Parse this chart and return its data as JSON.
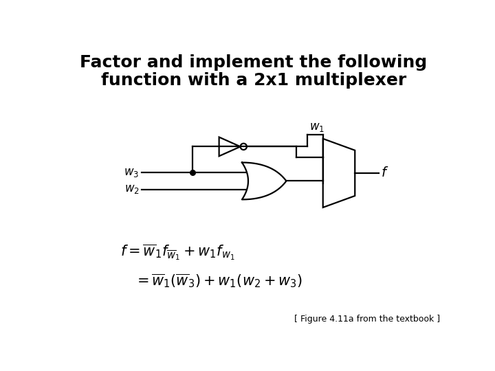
{
  "title_line1": "Factor and implement the following",
  "title_line2": "function with a 2x1 multiplexer",
  "title_fontsize": 18,
  "title_fontweight": "bold",
  "caption": "[ Figure 4.11a from the textbook ]",
  "bg_color": "#ffffff",
  "line_color": "#000000",
  "formula_fontsize": 15,
  "caption_fontsize": 9
}
